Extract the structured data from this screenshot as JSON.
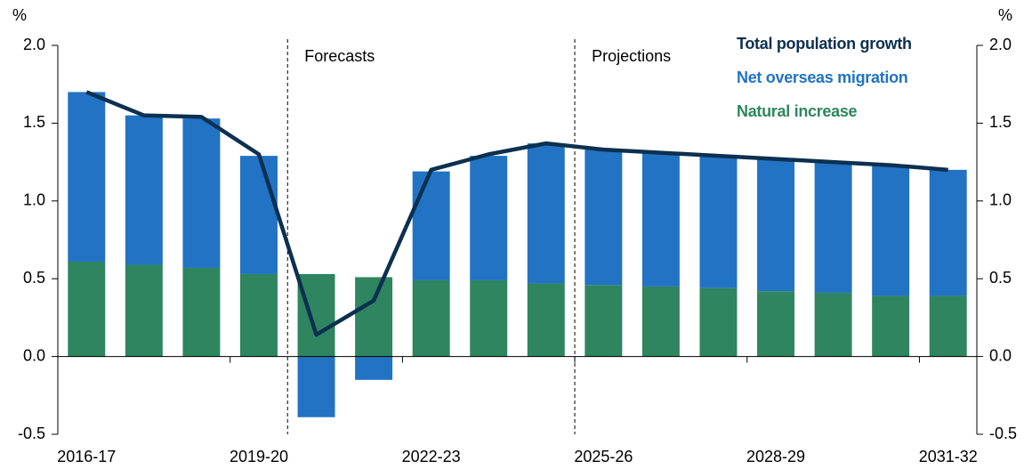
{
  "chart_data": {
    "type": "bar",
    "stacked": true,
    "y_label": "%",
    "y2_label": "%",
    "categories": [
      "2016-17",
      null,
      null,
      "2019-20",
      null,
      null,
      "2022-23",
      null,
      null,
      "2025-26",
      null,
      null,
      "2028-29",
      null,
      null,
      "2031-32"
    ],
    "series": [
      {
        "name": "Total population growth",
        "color": "#0c3050",
        "type": "line",
        "values": [
          1.7,
          1.55,
          1.54,
          1.3,
          0.14,
          0.36,
          1.2,
          1.3,
          1.37,
          1.33,
          1.31,
          1.29,
          1.27,
          1.25,
          1.23,
          1.2
        ]
      },
      {
        "name": "Net overseas migration",
        "color": "#2273c3",
        "type": "bar",
        "values": [
          1.09,
          0.96,
          0.96,
          0.76,
          -0.39,
          -0.15,
          0.7,
          0.8,
          0.9,
          0.87,
          0.86,
          0.85,
          0.85,
          0.84,
          0.84,
          0.81
        ]
      },
      {
        "name": "Natural increase",
        "color": "#2e8560",
        "type": "bar",
        "values": [
          0.61,
          0.59,
          0.57,
          0.53,
          0.53,
          0.51,
          0.49,
          0.49,
          0.47,
          0.46,
          0.45,
          0.44,
          0.42,
          0.41,
          0.39,
          0.39
        ]
      }
    ],
    "annotations": [
      "Forecasts",
      "Projections"
    ],
    "ylim": [
      -0.5,
      2.0
    ],
    "yticks": [
      -0.5,
      {
        "value": 0,
        "label": "0.0"
      },
      0.5,
      {
        "value": 1,
        "label": "1.0"
      },
      1.5,
      {
        "value": 2,
        "label": "2.0"
      }
    ],
    "y2lim": [
      -0.5,
      2.0
    ],
    "y2ticks": [
      -0.5,
      {
        "value": 0,
        "label": "0.0"
      },
      0.5,
      {
        "value": 1,
        "label": "1.0"
      },
      1.5,
      {
        "value": 2,
        "label": "2.0"
      }
    ]
  }
}
